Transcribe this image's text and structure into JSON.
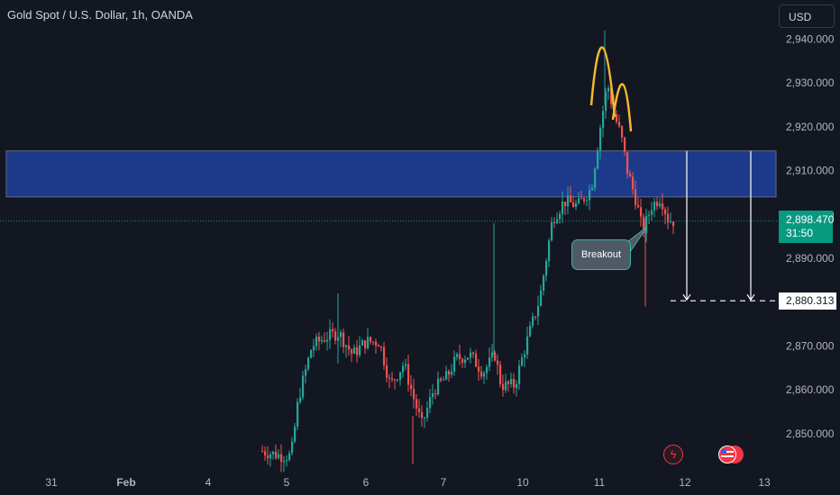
{
  "header": {
    "title": "Gold Spot / U.S. Dollar, 1h, OANDA"
  },
  "toolbar": {
    "currency": "USD"
  },
  "price_axis": {
    "ticks": [
      "2,940.000",
      "2,930.000",
      "2,920.000",
      "2,910.000",
      "2,900.000",
      "2,890.000",
      "2,870.000",
      "2,860.000",
      "2,850.000"
    ],
    "current_price": "2,898.470",
    "countdown": "31:50",
    "target_price": "2,880.313"
  },
  "time_axis": {
    "ticks": [
      "31",
      "Feb",
      "4",
      "5",
      "6",
      "7",
      "10",
      "11",
      "12",
      "13"
    ]
  },
  "annotation": {
    "callout": "Breakout"
  },
  "colors": {
    "background": "#131722",
    "up": "#26a69a",
    "down": "#ef5350",
    "zone": "#1d3a8a",
    "arc": "#f5b82e",
    "price_line": "#089981",
    "callout_border": "#3bb4a4"
  },
  "icons": [
    "lightning-event-icon",
    "us-flag-event-icon"
  ],
  "chart_data": {
    "type": "candlestick",
    "title": "Gold Spot / U.S. Dollar, 1h, OANDA",
    "ylim": [
      2843,
      2947
    ],
    "x_ticks": [
      "31",
      "Feb",
      "4",
      "5",
      "6",
      "7",
      "10",
      "11",
      "12",
      "13"
    ],
    "y_ticks": [
      2850,
      2860,
      2870,
      2880,
      2890,
      2900,
      2910,
      2920,
      2930,
      2940
    ],
    "resistance_zone": [
      2904.0,
      2914.5
    ],
    "current_price": 2898.47,
    "target_price": 2880.313,
    "pattern": "double top (two arcs) above resistance, breakout below zone",
    "anchors": [
      {
        "x": 290,
        "p": 2846
      },
      {
        "x": 310,
        "p": 2845
      },
      {
        "x": 322,
        "p": 2845
      },
      {
        "x": 330,
        "p": 2858
      },
      {
        "x": 345,
        "p": 2870
      },
      {
        "x": 360,
        "p": 2872
      },
      {
        "x": 375,
        "p": 2873
      },
      {
        "x": 390,
        "p": 2868
      },
      {
        "x": 405,
        "p": 2871
      },
      {
        "x": 420,
        "p": 2871
      },
      {
        "x": 432,
        "p": 2861
      },
      {
        "x": 447,
        "p": 2866
      },
      {
        "x": 458,
        "p": 2858
      },
      {
        "x": 467,
        "p": 2852
      },
      {
        "x": 480,
        "p": 2860
      },
      {
        "x": 495,
        "p": 2863
      },
      {
        "x": 505,
        "p": 2867
      },
      {
        "x": 520,
        "p": 2868
      },
      {
        "x": 535,
        "p": 2864
      },
      {
        "x": 548,
        "p": 2868
      },
      {
        "x": 555,
        "p": 2861
      },
      {
        "x": 570,
        "p": 2861
      },
      {
        "x": 582,
        "p": 2870
      },
      {
        "x": 598,
        "p": 2881
      },
      {
        "x": 612,
        "p": 2899
      },
      {
        "x": 625,
        "p": 2903
      },
      {
        "x": 640,
        "p": 2902
      },
      {
        "x": 655,
        "p": 2906
      },
      {
        "x": 665,
        "p": 2920
      },
      {
        "x": 673,
        "p": 2930
      },
      {
        "x": 680,
        "p": 2923
      },
      {
        "x": 688,
        "p": 2918
      },
      {
        "x": 695,
        "p": 2910
      },
      {
        "x": 705,
        "p": 2903
      },
      {
        "x": 712,
        "p": 2896
      },
      {
        "x": 722,
        "p": 2902
      },
      {
        "x": 732,
        "p": 2904
      },
      {
        "x": 740,
        "p": 2899
      },
      {
        "x": 746,
        "p": 2898.47
      }
    ]
  }
}
